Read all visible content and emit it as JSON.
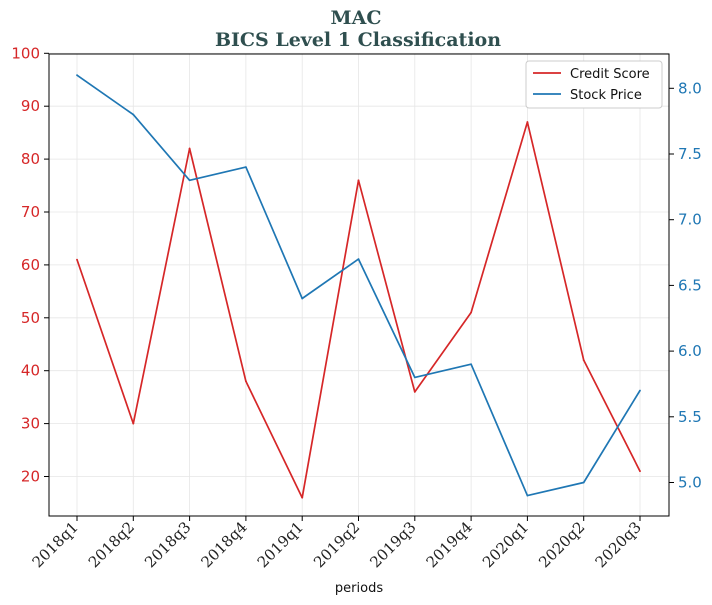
{
  "chart_data": {
    "type": "line",
    "title": "MAC",
    "subtitle": "BICS Level 1 Classification",
    "xlabel": "periods",
    "categories": [
      "2018q1",
      "2018q2",
      "2018q3",
      "2018q4",
      "2019q1",
      "2019q2",
      "2019q3",
      "2019q4",
      "2020q1",
      "2020q2",
      "2020q3"
    ],
    "series": [
      {
        "name": "Credit Score",
        "axis": "left",
        "color": "#d62728",
        "values": [
          61,
          30,
          82,
          38,
          16,
          76,
          36,
          51,
          87,
          42,
          21
        ]
      },
      {
        "name": "Stock Price",
        "axis": "right",
        "color": "#1f77b4",
        "values": [
          8.1,
          7.8,
          7.3,
          7.4,
          6.4,
          6.7,
          5.8,
          5.9,
          4.9,
          5.0,
          5.7
        ]
      }
    ],
    "y_left": {
      "ticks": [
        20,
        30,
        40,
        50,
        60,
        70,
        80,
        90,
        100
      ],
      "color": "#d62728"
    },
    "y_right": {
      "ticks": [
        "5.0",
        "5.5",
        "6.0",
        "6.5",
        "7.0",
        "7.5",
        "8.0"
      ],
      "color": "#1f77b4"
    },
    "grid": true,
    "legend_position": "top-right"
  }
}
